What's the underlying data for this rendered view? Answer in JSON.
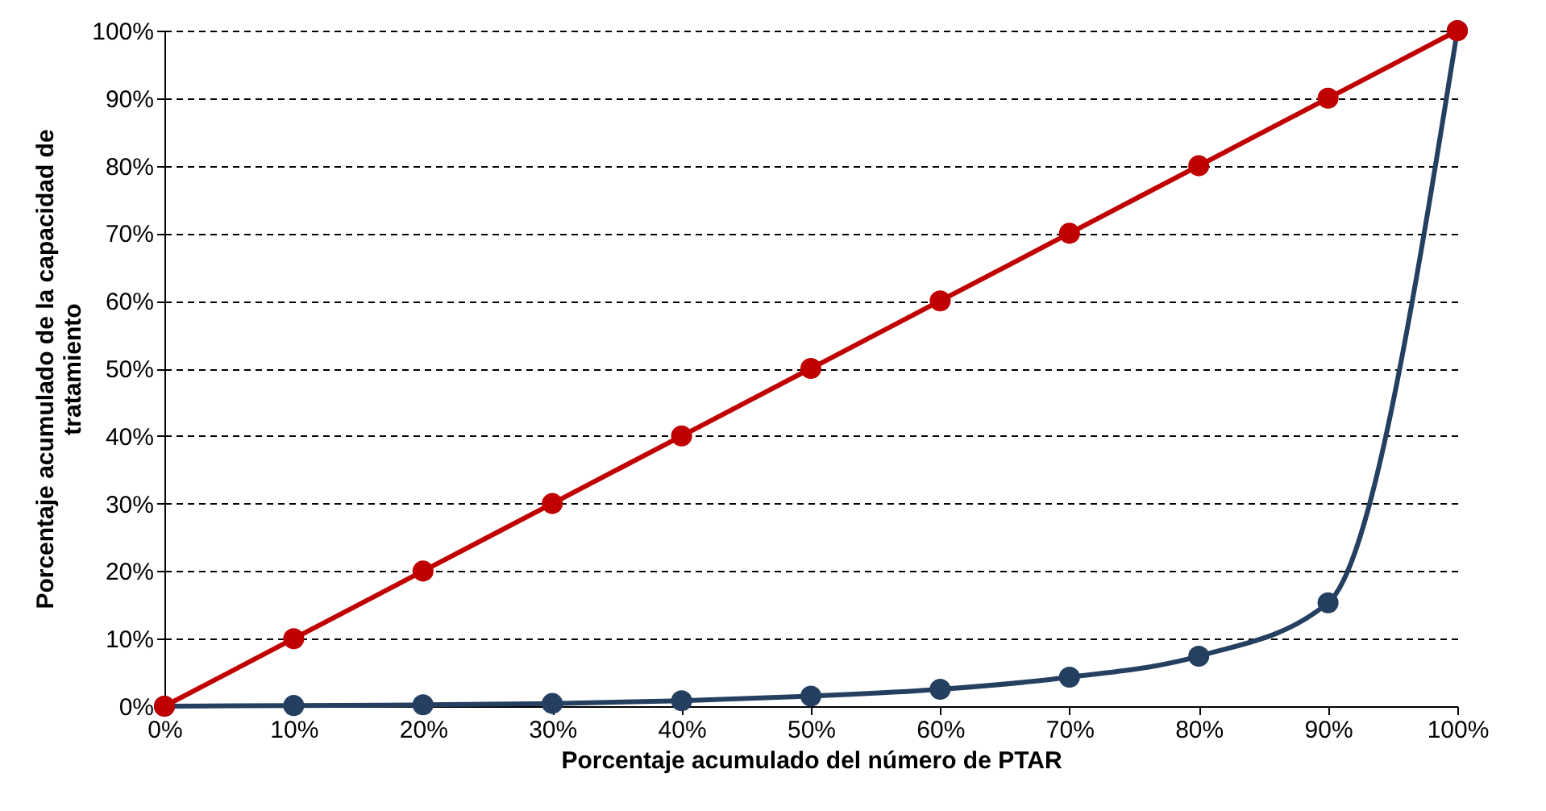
{
  "chart_data": {
    "type": "line",
    "xlabel": "Porcentaje acumulado del número de PTAR",
    "ylabel": "Porcentaje acumulado de la capacidad de tratamiento",
    "x": [
      0,
      10,
      20,
      30,
      40,
      50,
      60,
      70,
      80,
      90,
      100
    ],
    "series": [
      {
        "color": "#243f60",
        "values": [
          0,
          0.1,
          0.2,
          0.4,
          0.8,
          1.5,
          2.5,
          4.3,
          7.4,
          15.3,
          100
        ]
      },
      {
        "color": "#c00000",
        "values": [
          0,
          10,
          20,
          30,
          40,
          50,
          60,
          70,
          80,
          90,
          100
        ]
      }
    ],
    "xlim": [
      0,
      100
    ],
    "ylim": [
      0,
      100
    ],
    "xticks": [
      {
        "value": 0,
        "label": "0%"
      },
      {
        "value": 10,
        "label": "10%"
      },
      {
        "value": 20,
        "label": "20%"
      },
      {
        "value": 30,
        "label": "30%"
      },
      {
        "value": 40,
        "label": "40%"
      },
      {
        "value": 50,
        "label": "50%"
      },
      {
        "value": 60,
        "label": "60%"
      },
      {
        "value": 70,
        "label": "70%"
      },
      {
        "value": 80,
        "label": "80%"
      },
      {
        "value": 90,
        "label": "90%"
      },
      {
        "value": 100,
        "label": "100%"
      }
    ],
    "yticks": [
      {
        "value": 0,
        "label": "0%"
      },
      {
        "value": 10,
        "label": "10%"
      },
      {
        "value": 20,
        "label": "20%"
      },
      {
        "value": 30,
        "label": "30%"
      },
      {
        "value": 40,
        "label": "40%"
      },
      {
        "value": 50,
        "label": "50%"
      },
      {
        "value": 60,
        "label": "60%"
      },
      {
        "value": 70,
        "label": "70%"
      },
      {
        "value": 80,
        "label": "80%"
      },
      {
        "value": 90,
        "label": "90%"
      },
      {
        "value": 100,
        "label": "100%"
      }
    ],
    "grid": "y",
    "marker": "circle",
    "line_style": "solid",
    "legend": false
  }
}
